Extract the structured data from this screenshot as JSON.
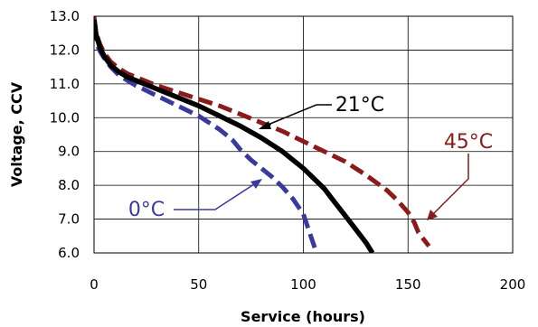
{
  "chart_data": {
    "type": "line",
    "title": "",
    "xlabel": "Service (hours)",
    "ylabel": "Voltage, CCV",
    "xlim": [
      0,
      200
    ],
    "ylim": [
      6.0,
      13.0
    ],
    "x_ticks": [
      "0",
      "50",
      "100",
      "150",
      "200"
    ],
    "y_ticks": [
      "6.0",
      "7.0",
      "8.0",
      "9.0",
      "10.0",
      "11.0",
      "12.0",
      "13.0"
    ],
    "grid": true,
    "legend": "none",
    "series": [
      {
        "name": "0°C",
        "color": "#3a3a9e",
        "style": "dashed",
        "x": [
          0,
          1,
          3,
          5,
          8,
          12,
          16,
          20,
          25,
          30,
          40,
          50,
          60,
          66,
          70,
          75,
          80,
          85,
          90,
          95,
          100,
          103,
          106
        ],
        "y": [
          12.7,
          12.2,
          11.95,
          11.75,
          11.5,
          11.25,
          11.1,
          10.95,
          10.8,
          10.65,
          10.35,
          10.05,
          9.65,
          9.35,
          9.05,
          8.75,
          8.5,
          8.25,
          7.95,
          7.6,
          7.15,
          6.6,
          6.05
        ]
      },
      {
        "name": "21°C",
        "color": "#000000",
        "style": "solid",
        "x": [
          0,
          1,
          3,
          5,
          8,
          12,
          16,
          20,
          30,
          40,
          50,
          60,
          70,
          80,
          90,
          100,
          110,
          115,
          120,
          125,
          130,
          133
        ],
        "y": [
          12.9,
          12.45,
          12.05,
          11.8,
          11.55,
          11.35,
          11.2,
          11.1,
          10.85,
          10.6,
          10.35,
          10.05,
          9.75,
          9.4,
          9.0,
          8.5,
          7.9,
          7.5,
          7.1,
          6.7,
          6.3,
          6.0
        ]
      },
      {
        "name": "45°C",
        "color": "#8b1a1a",
        "style": "dashed",
        "x": [
          0,
          1,
          3,
          5,
          8,
          12,
          16,
          20,
          30,
          40,
          50,
          60,
          70,
          80,
          90,
          100,
          110,
          120,
          130,
          140,
          145,
          150,
          153,
          155,
          160
        ],
        "y": [
          13.0,
          12.5,
          12.15,
          11.9,
          11.65,
          11.45,
          11.3,
          11.2,
          10.95,
          10.75,
          10.55,
          10.35,
          10.1,
          9.85,
          9.6,
          9.3,
          9.0,
          8.7,
          8.3,
          7.85,
          7.55,
          7.2,
          6.9,
          6.6,
          6.2
        ]
      }
    ],
    "annotations": [
      {
        "text": "0°C",
        "color": "#3a3a9e"
      },
      {
        "text": "21°C",
        "color": "#000000"
      },
      {
        "text": "45°C",
        "color": "#8b1a1a"
      }
    ]
  }
}
